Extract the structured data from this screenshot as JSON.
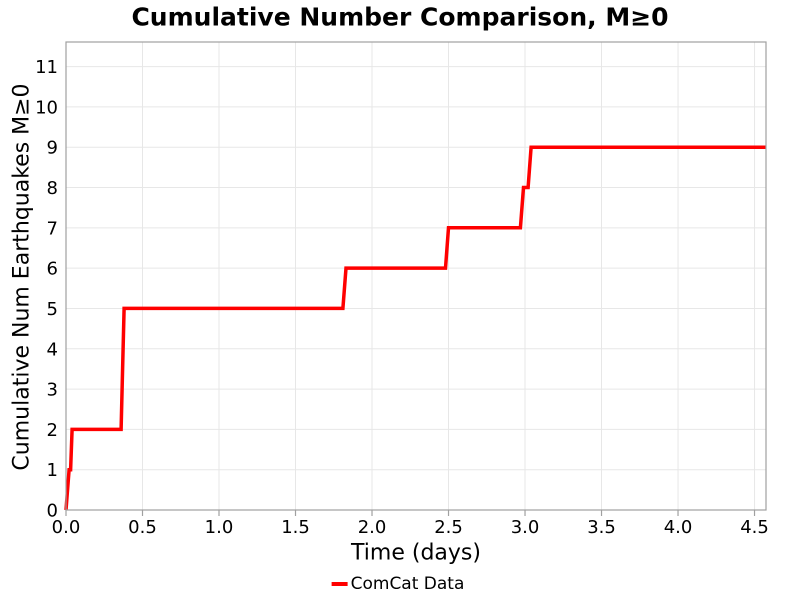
{
  "chart_data": {
    "type": "line",
    "style": "cumulative-step",
    "title": "Cumulative Number Comparison, M≥0",
    "xlabel": "Time (days)",
    "ylabel": "Cumulative Num Earthquakes M≥0",
    "xlim": [
      0,
      4.575
    ],
    "ylim": [
      0,
      11.61
    ],
    "xticks": [
      0.0,
      0.5,
      1.0,
      1.5,
      2.0,
      2.5,
      3.0,
      3.5,
      4.0,
      4.5
    ],
    "xtick_labels": [
      "0.0",
      "0.5",
      "1.0",
      "1.5",
      "2.0",
      "2.5",
      "3.0",
      "3.5",
      "4.0",
      "4.5"
    ],
    "yticks": [
      0,
      1,
      2,
      3,
      4,
      5,
      6,
      7,
      8,
      9,
      10,
      11
    ],
    "ytick_labels": [
      "0",
      "1",
      "2",
      "3",
      "4",
      "5",
      "6",
      "7",
      "8",
      "9",
      "10",
      "11"
    ],
    "grid": true,
    "legend_position": "lower center below axes",
    "series": [
      {
        "name": "ComCat Data",
        "color": "#ff0000",
        "linewidth": 3.5,
        "points": [
          [
            0.0,
            0
          ],
          [
            0.02,
            1
          ],
          [
            0.03,
            1
          ],
          [
            0.04,
            2
          ],
          [
            0.36,
            2
          ],
          [
            0.38,
            5
          ],
          [
            1.81,
            5
          ],
          [
            1.83,
            6
          ],
          [
            2.48,
            6
          ],
          [
            2.5,
            7
          ],
          [
            2.97,
            7
          ],
          [
            2.99,
            8
          ],
          [
            3.02,
            8
          ],
          [
            3.04,
            9
          ],
          [
            4.575,
            9
          ]
        ],
        "event_times_days": [
          0.02,
          0.04,
          0.37,
          0.37,
          0.37,
          1.82,
          2.49,
          2.98,
          3.03
        ],
        "final_count": 9
      }
    ],
    "colors": {
      "line": "#ff0000",
      "grid": "#e7e7e7",
      "spine": "#a0a0a0",
      "tick": "#a0a0a0",
      "text": "#000000",
      "background": "#ffffff"
    }
  },
  "legend": {
    "items": [
      {
        "label": "ComCat Data",
        "color": "#ff0000"
      }
    ]
  }
}
